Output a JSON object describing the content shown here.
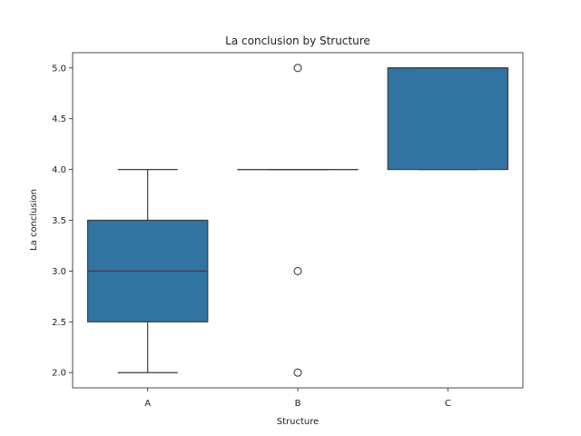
{
  "chart_data": {
    "type": "box",
    "title": "La conclusion by Structure",
    "xlabel": "Structure",
    "ylabel": "La conclusion",
    "categories": [
      "A",
      "B",
      "C"
    ],
    "ylim": [
      1.85,
      5.15
    ],
    "yticks": [
      2.0,
      2.5,
      3.0,
      3.5,
      4.0,
      4.5,
      5.0
    ],
    "ytick_labels": [
      "2.0",
      "2.5",
      "3.0",
      "3.5",
      "4.0",
      "4.5",
      "5.0"
    ],
    "grid": false,
    "box_color": "#3274a1",
    "line_color": "#3f3f3f",
    "boxes": [
      {
        "category": "A",
        "whisker_low": 2.0,
        "q1": 2.5,
        "median": 3.0,
        "q3": 3.5,
        "whisker_high": 4.0,
        "outliers": []
      },
      {
        "category": "B",
        "whisker_low": 4.0,
        "q1": 4.0,
        "median": 4.0,
        "q3": 4.0,
        "whisker_high": 4.0,
        "outliers": [
          5.0,
          3.0,
          2.0
        ]
      },
      {
        "category": "C",
        "whisker_low": 4.0,
        "q1": 4.0,
        "median": 5.0,
        "q3": 5.0,
        "whisker_high": 5.0,
        "outliers": []
      }
    ]
  }
}
